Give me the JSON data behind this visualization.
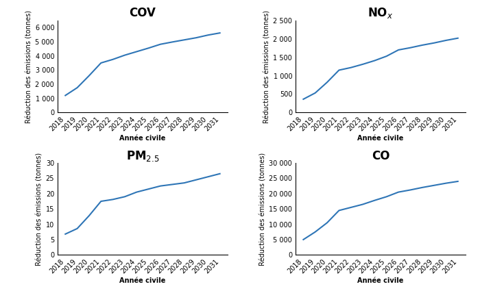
{
  "years": [
    2018,
    2019,
    2020,
    2021,
    2022,
    2023,
    2024,
    2025,
    2026,
    2027,
    2028,
    2029,
    2030,
    2031
  ],
  "COV": [
    1200,
    1750,
    2600,
    3500,
    3750,
    4050,
    4300,
    4550,
    4820,
    4980,
    5130,
    5280,
    5470,
    5620
  ],
  "NOx": [
    360,
    530,
    820,
    1150,
    1220,
    1310,
    1410,
    1530,
    1700,
    1760,
    1830,
    1890,
    1960,
    2020
  ],
  "PM25": [
    6.8,
    8.6,
    12.8,
    17.5,
    18.1,
    19.0,
    20.5,
    21.5,
    22.5,
    23.0,
    23.5,
    24.5,
    25.5,
    26.5
  ],
  "CO": [
    5000,
    7500,
    10500,
    14500,
    15500,
    16500,
    17800,
    19000,
    20500,
    21200,
    22000,
    22700,
    23400,
    24000
  ],
  "line_color": "#2E75B6",
  "ylabel": "Réduction des émissions (tonnes)",
  "xlabel": "Année civile",
  "COV_ylim": [
    0,
    6500
  ],
  "COV_yticks": [
    0,
    1000,
    2000,
    3000,
    4000,
    5000,
    6000
  ],
  "NOx_ylim": [
    0,
    2500
  ],
  "NOx_yticks": [
    0,
    500,
    1000,
    1500,
    2000,
    2500
  ],
  "PM25_ylim": [
    0,
    30
  ],
  "PM25_yticks": [
    0,
    5,
    10,
    15,
    20,
    25,
    30
  ],
  "CO_ylim": [
    0,
    30000
  ],
  "CO_yticks": [
    0,
    5000,
    10000,
    15000,
    20000,
    25000,
    30000
  ],
  "title_fontsize": 12,
  "label_fontsize": 7,
  "tick_fontsize": 7,
  "background_color": "#ffffff"
}
